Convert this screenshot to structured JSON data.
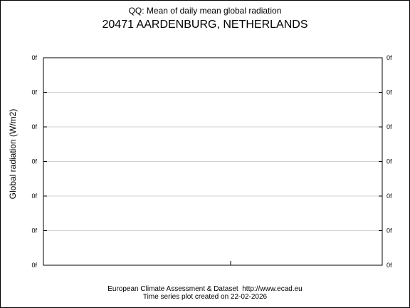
{
  "chart_data": {
    "type": "line",
    "title": "QQ: Mean of daily mean global radiation",
    "subtitle": "20471 AARDENBURG, NETHERLANDS",
    "xlabel": "",
    "ylabel": "Global radiation (W/m2)",
    "y_tick_labels": [
      "0f",
      "0f",
      "0f",
      "0f",
      "0f",
      "0f",
      "0f"
    ],
    "series": [],
    "grid": true
  },
  "footer": {
    "line1": "European Climate Assessment & Dataset  http://www.ecad.eu",
    "line2": "Time series plot created on 22-02-2026"
  }
}
